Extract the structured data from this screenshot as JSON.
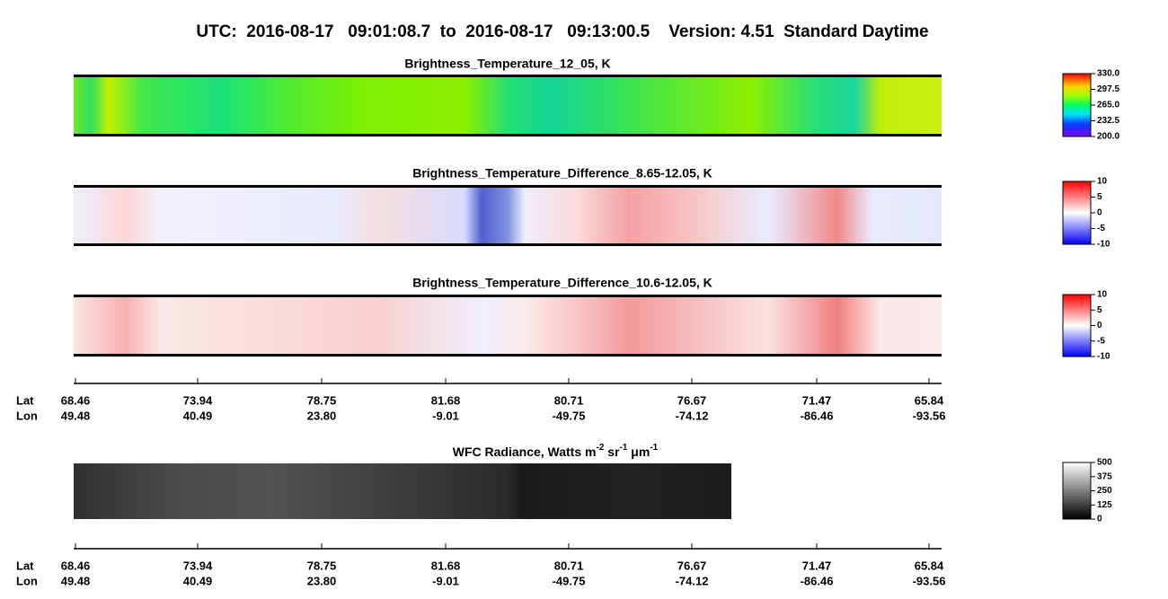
{
  "title": "UTC:  2016-08-17   09:01:08.7  to  2016-08-17   09:13:00.5    Version: 4.51  Standard Daytime",
  "panels": [
    {
      "title": "Brightness_Temperature_12_05, K",
      "colorbar": {
        "lim": [
          200,
          330
        ],
        "ticks": [
          {
            "value": 330,
            "label": "330.0"
          },
          {
            "value": 297.5,
            "label": "297.5"
          },
          {
            "value": 265,
            "label": "265.0"
          },
          {
            "value": 232.5,
            "label": "232.5"
          },
          {
            "value": 200,
            "label": "200.0"
          }
        ]
      }
    },
    {
      "title": "Brightness_Temperature_Difference_8.65-12.05, K",
      "colorbar": {
        "lim": [
          -10,
          10
        ],
        "ticks": [
          10,
          5,
          0,
          -5,
          -10
        ]
      }
    },
    {
      "title": "Brightness_Temperature_Difference_10.6-12.05, K",
      "colorbar": {
        "lim": [
          -10,
          10
        ],
        "ticks": [
          10,
          5,
          0,
          -5,
          -10
        ]
      }
    },
    {
      "title_parts": [
        "WFC Radiance, Watts m",
        "-2",
        " sr",
        "-1",
        " μm",
        "-1"
      ],
      "colorbar": {
        "lim": [
          0,
          500
        ],
        "ticks": [
          500,
          375,
          250,
          125,
          0
        ]
      }
    }
  ],
  "axis": {
    "lat_label": "Lat",
    "lon_label": "Lon",
    "lat": [
      "68.46",
      "73.94",
      "78.75",
      "81.68",
      "80.71",
      "76.67",
      "71.47",
      "65.84"
    ],
    "lon": [
      "49.48",
      "40.49",
      "23.80",
      "-9.01",
      "-49.75",
      "-74.12",
      "-86.46",
      "-93.56"
    ]
  }
}
